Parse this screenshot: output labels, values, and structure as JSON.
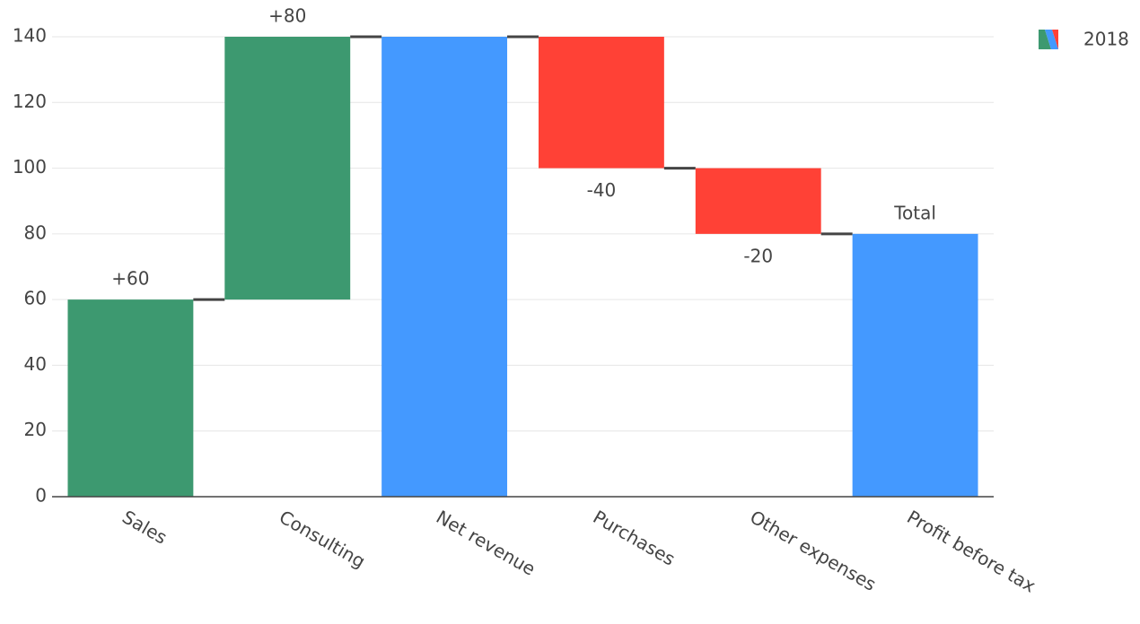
{
  "chart_data": {
    "type": "waterfall",
    "categories": [
      "Sales",
      "Consulting",
      "Net revenue",
      "Purchases",
      "Other expenses",
      "Profit before tax"
    ],
    "series": [
      {
        "name": "2018",
        "measure": [
          "relative",
          "relative",
          "total",
          "relative",
          "relative",
          "total"
        ],
        "values": [
          60,
          80,
          140,
          -40,
          -20,
          80
        ],
        "text": [
          "+60",
          "+80",
          null,
          "-40",
          "-20",
          "Total"
        ],
        "increasing_color": "#3d9970",
        "decreasing_color": "#ff4136",
        "total_color": "#4499ff",
        "connector_color": "#444444"
      }
    ],
    "ylim": [
      0,
      140
    ],
    "yticks": [
      0,
      20,
      40,
      60,
      80,
      100,
      120,
      140
    ],
    "grid": true,
    "legend": "top-right"
  }
}
